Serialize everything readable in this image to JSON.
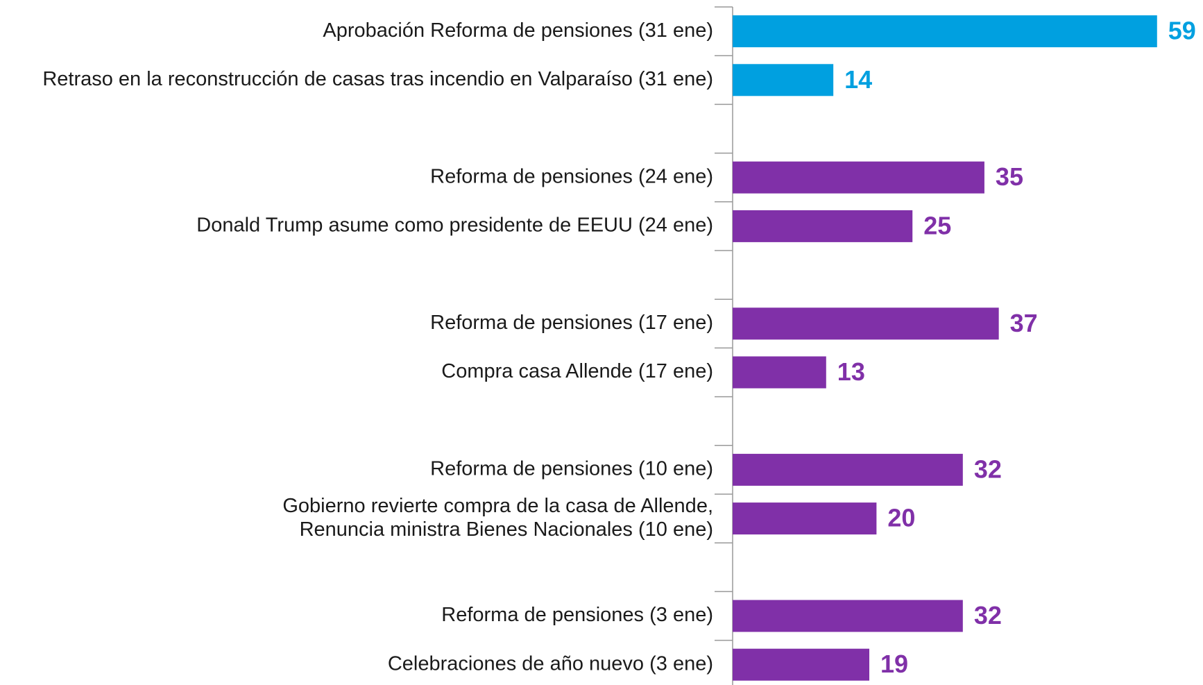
{
  "chart_data": {
    "type": "barh",
    "categories": [
      "Aprobación Reforma de pensiones (31 ene)",
      "Retraso en la reconstrucción de casas tras incendio en Valparaíso (31 ene)",
      null,
      "Reforma de pensiones (24 ene)",
      "Donald Trump asume como presidente de EEUU (24 ene)",
      null,
      "Reforma de pensiones (17 ene)",
      "Compra casa Allende (17 ene)",
      null,
      "Reforma de pensiones (10 ene)",
      [
        "Gobierno revierte compra de la casa de Allende,",
        "Renuncia ministra Bienes Nacionales (10 ene)"
      ],
      null,
      "Reforma de pensiones (3 ene)",
      "Celebraciones de año nuevo (3 ene)"
    ],
    "values": [
      59,
      14,
      null,
      35,
      25,
      null,
      37,
      13,
      null,
      32,
      20,
      null,
      32,
      19
    ],
    "colors": [
      "#00a0e0",
      "#00a0e0",
      null,
      "#8030a8",
      "#8030a8",
      null,
      "#8030a8",
      "#8030a8",
      null,
      "#8030a8",
      "#8030a8",
      null,
      "#8030a8",
      "#8030a8"
    ],
    "xlim": [
      0,
      65
    ]
  }
}
